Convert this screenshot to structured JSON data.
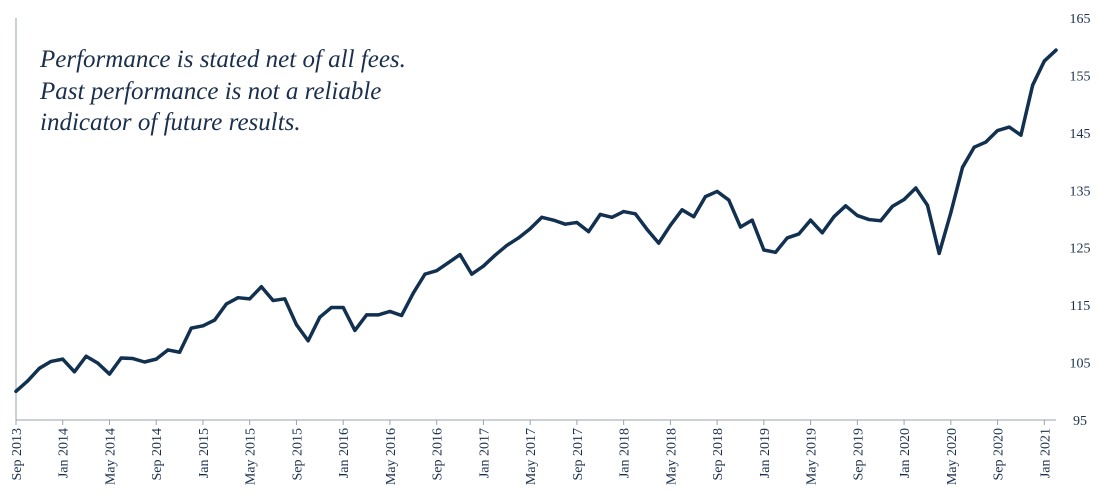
{
  "disclaimer": {
    "line1": "Performance is stated net of all fees.",
    "line2": "Past performance is not a reliable",
    "line3": "indicator of future results."
  },
  "chart_data": {
    "type": "line",
    "title": "",
    "xlabel": "",
    "ylabel": "",
    "ylim": [
      95,
      165
    ],
    "y_ticks": [
      95,
      105,
      115,
      125,
      135,
      145,
      155,
      165
    ],
    "y_axis_side": "right",
    "grid": false,
    "x_tick_labels": [
      "Sep 2013",
      "Jan 2014",
      "May 2014",
      "Sep 2014",
      "Jan 2015",
      "May 2015",
      "Sep 2015",
      "Jan 2016",
      "May 2016",
      "Sep 2016",
      "Jan 2017",
      "May 2017",
      "Sep 2017",
      "Jan 2018",
      "May 2018",
      "Sep 2018",
      "Jan 2019",
      "May 2019",
      "Sep 2019",
      "Jan 2020",
      "May 2020",
      "Sep 2020",
      "Jan 2021"
    ],
    "line_color": "#12304f",
    "series": [
      {
        "x": [
          "Sep 2013",
          "Oct 2013",
          "Nov 2013",
          "Dec 2013",
          "Jan 2014",
          "Feb 2014",
          "Mar 2014",
          "Apr 2014",
          "May 2014",
          "Jun 2014",
          "Jul 2014",
          "Aug 2014",
          "Sep 2014",
          "Oct 2014",
          "Nov 2014",
          "Dec 2014",
          "Jan 2015",
          "Feb 2015",
          "Mar 2015",
          "Apr 2015",
          "May 2015",
          "Jun 2015",
          "Jul 2015",
          "Aug 2015",
          "Sep 2015",
          "Oct 2015",
          "Nov 2015",
          "Dec 2015",
          "Jan 2016",
          "Feb 2016",
          "Mar 2016",
          "Apr 2016",
          "May 2016",
          "Jun 2016",
          "Jul 2016",
          "Aug 2016",
          "Sep 2016",
          "Oct 2016",
          "Nov 2016",
          "Dec 2016",
          "Jan 2017",
          "Feb 2017",
          "Mar 2017",
          "Apr 2017",
          "May 2017",
          "Jun 2017",
          "Jul 2017",
          "Aug 2017",
          "Sep 2017",
          "Oct 2017",
          "Nov 2017",
          "Dec 2017",
          "Jan 2018",
          "Feb 2018",
          "Mar 2018",
          "Apr 2018",
          "May 2018",
          "Jun 2018",
          "Jul 2018",
          "Aug 2018",
          "Sep 2018",
          "Oct 2018",
          "Nov 2018",
          "Dec 2018",
          "Jan 2019",
          "Feb 2019",
          "Mar 2019",
          "Apr 2019",
          "May 2019",
          "Jun 2019",
          "Jul 2019",
          "Aug 2019",
          "Sep 2019",
          "Oct 2019",
          "Nov 2019",
          "Dec 2019",
          "Jan 2020",
          "Feb 2020",
          "Mar 2020",
          "Apr 2020",
          "May 2020",
          "Jun 2020",
          "Jul 2020",
          "Aug 2020",
          "Sep 2020",
          "Oct 2020",
          "Nov 2020",
          "Dec 2020",
          "Jan 2021",
          "Feb 2021"
        ],
        "values": [
          100.0,
          101.8,
          104.0,
          105.2,
          105.6,
          103.4,
          106.1,
          104.9,
          103.0,
          105.8,
          105.7,
          105.1,
          105.6,
          107.2,
          106.8,
          111.0,
          111.4,
          112.4,
          115.2,
          116.3,
          116.1,
          118.2,
          115.8,
          116.1,
          111.6,
          108.8,
          112.9,
          114.6,
          114.6,
          110.6,
          113.3,
          113.3,
          113.9,
          113.2,
          117.1,
          120.4,
          121.0,
          122.4,
          123.8,
          120.4,
          121.8,
          123.7,
          125.4,
          126.7,
          128.3,
          130.3,
          129.8,
          129.1,
          129.4,
          127.8,
          130.8,
          130.3,
          131.3,
          130.9,
          128.2,
          125.8,
          128.9,
          131.6,
          130.4,
          133.9,
          134.8,
          133.3,
          128.6,
          129.8,
          124.6,
          124.2,
          126.7,
          127.4,
          129.8,
          127.6,
          130.4,
          132.3,
          130.6,
          129.9,
          129.7,
          132.2,
          133.4,
          135.4,
          132.4,
          124.0,
          131.1,
          139.0,
          142.5,
          143.4,
          145.4,
          146.0,
          144.6,
          153.3,
          157.5,
          159.4
        ]
      }
    ]
  }
}
